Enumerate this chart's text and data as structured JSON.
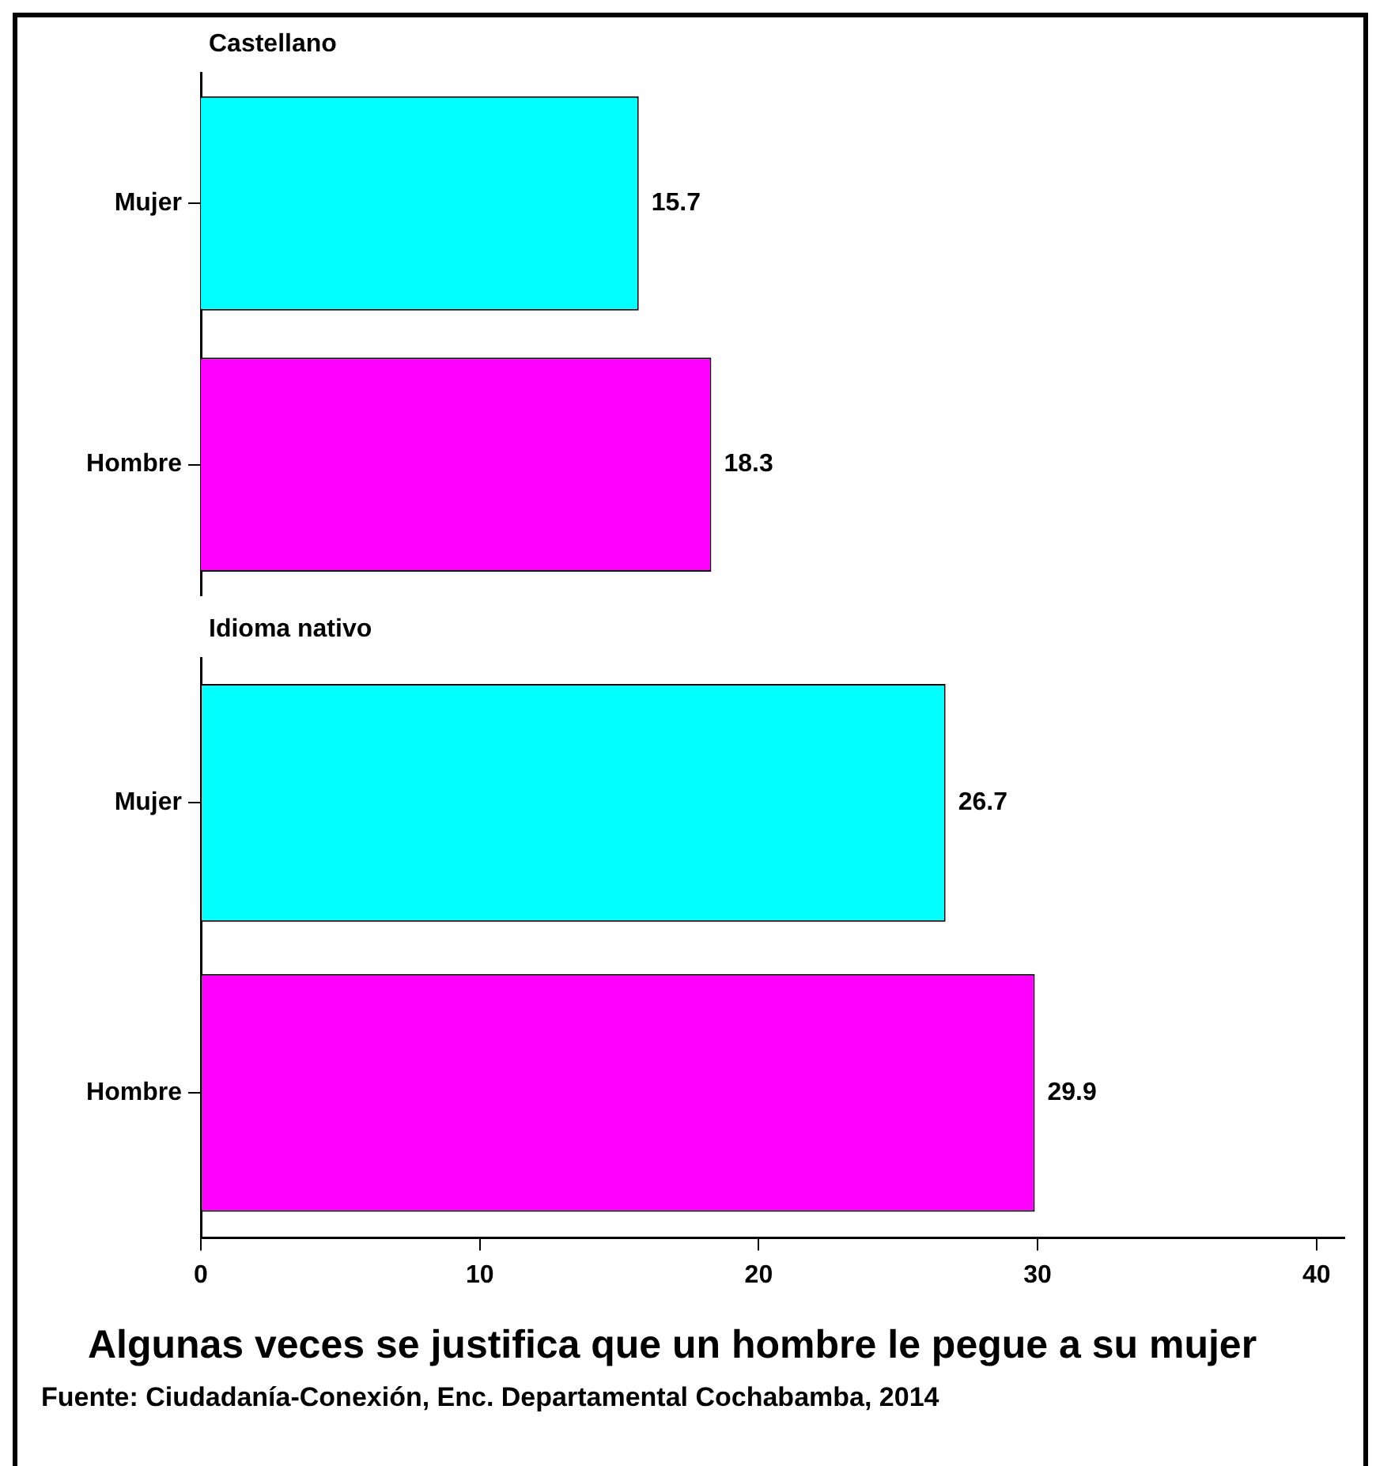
{
  "chart_data": [
    {
      "type": "bar",
      "orientation": "horizontal",
      "title": "Castellano",
      "categories": [
        "Mujer",
        "Hombre"
      ],
      "values": [
        15.7,
        18.3
      ],
      "colors": [
        "#00ffff",
        "#ff00ff"
      ],
      "data_labels": true,
      "tick_labels": "y"
    },
    {
      "type": "bar",
      "orientation": "horizontal",
      "title": "Idioma nativo",
      "categories": [
        "Mujer",
        "Hombre"
      ],
      "values": [
        26.7,
        29.9
      ],
      "colors": [
        "#00ffff",
        "#ff00ff"
      ],
      "xlim": [
        0,
        41
      ],
      "xticks": [
        0,
        10,
        20,
        30,
        40
      ],
      "data_labels": true,
      "xlabel": "Algunas veces se justifica que un hombre le pegue a su mujer",
      "annotations": [
        "Fuente: Ciudadanía-Conexión, Enc. Departamental Cochabamba, 2014"
      ]
    }
  ]
}
